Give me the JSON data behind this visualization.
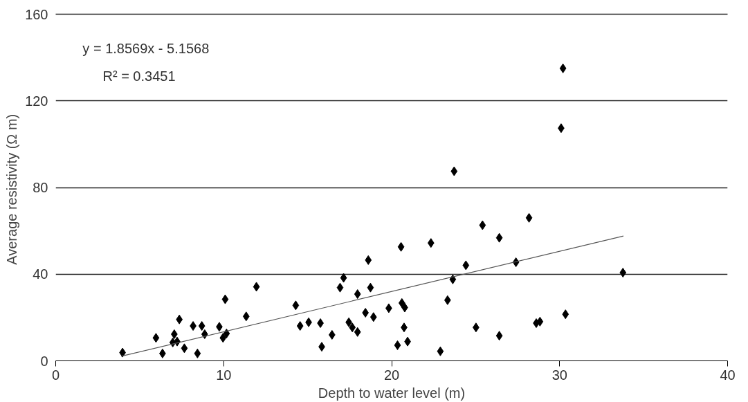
{
  "chart_data": {
    "type": "scatter",
    "xlabel": "Depth to water level (m)",
    "ylabel": "Average  resistivity (Ω m)",
    "annotations": [
      "y = 1.8569x - 5.1568",
      "R² = 0.3451"
    ],
    "series": [
      {
        "color": "#000000",
        "marker": "diamond",
        "x": [
          3.98,
          5.97,
          6.36,
          7.36,
          7.06,
          6.97,
          7.23,
          7.66,
          8.18,
          8.7,
          8.87,
          8.44,
          9.74,
          10.09,
          9.96,
          10.17,
          11.34,
          11.95,
          14.29,
          14.55,
          15.06,
          15.76,
          15.84,
          16.45,
          16.93,
          17.14,
          17.97,
          17.45,
          17.66,
          17.97,
          18.44,
          18.92,
          18.61,
          18.74,
          19.83,
          20.56,
          20.61,
          20.78,
          20.74,
          20.35,
          20.95,
          22.34,
          22.9,
          23.33,
          23.64,
          24.42,
          25.02,
          25.41,
          26.41,
          26.41,
          23.72,
          28.18,
          27.4,
          28.61,
          28.83,
          30.2,
          30.09,
          33.77,
          30.35
        ],
        "values": [
          3.8,
          10.6,
          3.4,
          19.1,
          12.3,
          8.5,
          8.9,
          5.8,
          16.1,
          16.1,
          12.3,
          3.4,
          15.7,
          28.4,
          10.6,
          12.6,
          20.5,
          34.2,
          25.6,
          16.1,
          17.8,
          17.4,
          6.5,
          12.0,
          33.8,
          38.3,
          30.8,
          17.8,
          15.4,
          13.3,
          22.2,
          20.2,
          46.5,
          33.8,
          24.3,
          52.6,
          26.7,
          24.6,
          15.4,
          7.2,
          8.9,
          54.4,
          4.4,
          28.0,
          37.6,
          44.1,
          15.4,
          62.6,
          56.8,
          11.6,
          87.5,
          66.0,
          45.5,
          17.4,
          18.1,
          135.0,
          107.4,
          40.7,
          21.5
        ]
      },
      {
        "type": "line",
        "color": "#555555",
        "line_style": "solid",
        "x": [
          3.9,
          33.8
        ],
        "values": [
          2.1,
          57.6
        ]
      }
    ],
    "xlim": [
      0,
      40
    ],
    "xticks": [
      0,
      10,
      20,
      30,
      40
    ],
    "ylim": [
      0,
      160
    ],
    "yticks": [
      0,
      40,
      80,
      120,
      160
    ],
    "grid": "y"
  }
}
